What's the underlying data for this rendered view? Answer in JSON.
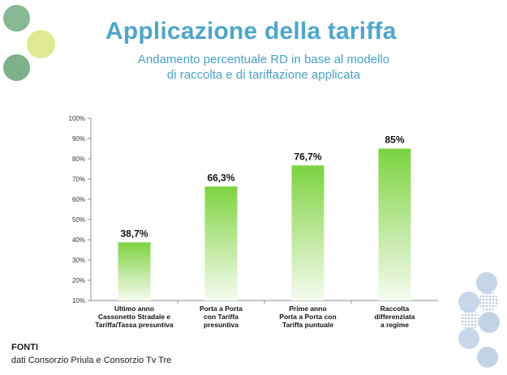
{
  "header": {
    "title": "Applicazione della tariffa",
    "subtitle_line1": "Andamento percentuale RD in base al modello",
    "subtitle_line2": "di raccolta e di tariffazione applicata"
  },
  "footer": {
    "heading": "FONTI",
    "text": "dati Consorzio Priula e Consorzio Tv Tre"
  },
  "colors": {
    "title": "#4fa6c9",
    "bar_top": "#7bd33f",
    "bar_bottom": "#f2f9ec",
    "decor_green_dark": "#7fb48a",
    "decor_green_light": "#dde98f",
    "decor_blue": "#c2d2e6"
  },
  "chart_data": {
    "type": "bar",
    "categories": [
      [
        "Ultimo anno",
        "Cassonetto Stradale e",
        "Tariffa/Tassa presuntiva"
      ],
      [
        "Porta a Porta",
        "con Tariffa",
        "presuntiva"
      ],
      [
        "Prime anno",
        "Porta a Porta con",
        "Tariffa puntuale"
      ],
      [
        "Raccolta",
        "differenziata",
        "a regime"
      ]
    ],
    "values": [
      38.7,
      66.3,
      76.7,
      85
    ],
    "data_labels": [
      "38,7%",
      "66,3%",
      "76,7%",
      "85%"
    ],
    "ylim": [
      10,
      100
    ],
    "yticks": [
      "10%",
      "20%",
      "30%",
      "40%",
      "50%",
      "60%",
      "70%",
      "80%",
      "90%",
      "100%"
    ],
    "grid": false,
    "title": "",
    "xlabel": "",
    "ylabel": ""
  }
}
